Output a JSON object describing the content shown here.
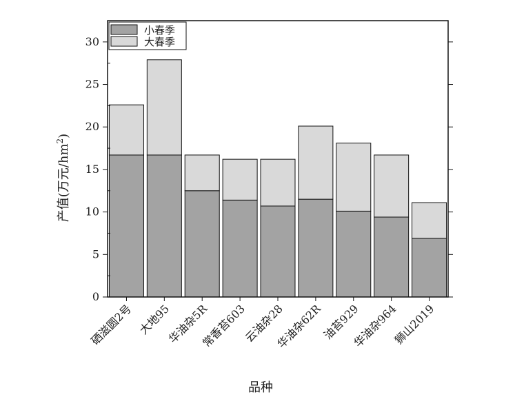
{
  "chart_data": {
    "type": "bar",
    "stacked": true,
    "title": "",
    "xlabel": "品种",
    "ylabel": "产值(万元/hm²)",
    "ylabel_parts": {
      "main": "产值(万元/hm",
      "sup": "2",
      "close": ")"
    },
    "ylim": [
      0,
      32.5
    ],
    "yticks": [
      0,
      5,
      10,
      15,
      20,
      25,
      30
    ],
    "categories": [
      "硒滋圆2号",
      "大地95",
      "华油杂5R",
      "常香苔603",
      "云油杂28",
      "华油杂62R",
      "油苔929",
      "华油杂964",
      "狮山2019"
    ],
    "series": [
      {
        "name": "小春季",
        "color": "#a3a3a3",
        "values": [
          16.7,
          16.7,
          12.5,
          11.4,
          10.7,
          11.5,
          10.1,
          9.4,
          6.9
        ]
      },
      {
        "name": "大春季",
        "color": "#d9d9d9",
        "values": [
          5.9,
          11.2,
          4.2,
          4.8,
          5.5,
          8.6,
          8.0,
          7.3,
          4.2
        ]
      }
    ],
    "legend_position": "top-left"
  }
}
